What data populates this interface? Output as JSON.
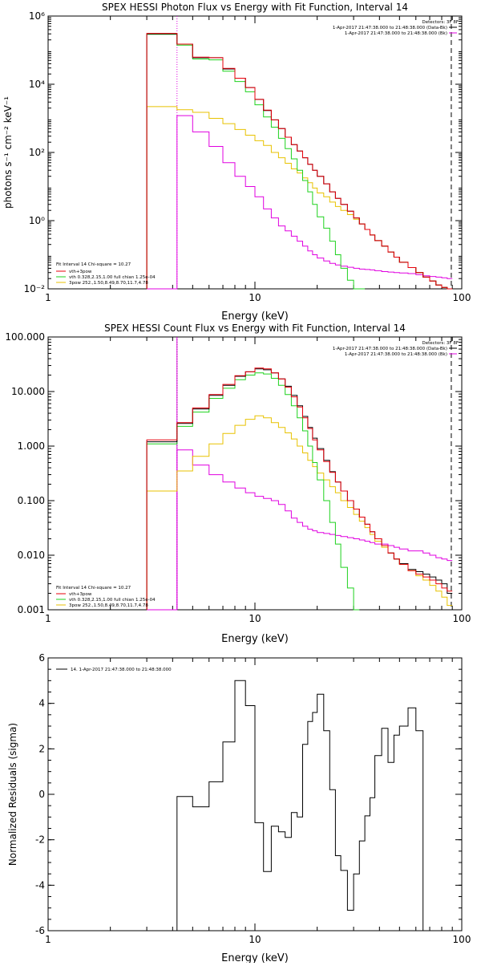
{
  "colors": {
    "data": "#000000",
    "total": "#e8000b",
    "thermal": "#1ed21e",
    "nonthermal": "#e8c200",
    "background": "#e000e0"
  },
  "chart_data": [
    {
      "type": "line",
      "title": "SPEX HESSI Photon Flux vs Energy with Fit Function, Interval 14",
      "xlabel": "Energy (keV)",
      "ylabel": "photons s⁻¹ cm⁻² keV⁻¹",
      "xscale": "log",
      "yscale": "log",
      "xlim": [
        1,
        100
      ],
      "ylim": [
        0.01,
        1000000
      ],
      "xticks": [
        {
          "v": 1,
          "label": "1"
        },
        {
          "v": 10,
          "label": "10"
        },
        {
          "v": 100,
          "label": "100"
        }
      ],
      "yticks": [
        {
          "v": 0.01,
          "label": "10⁻²"
        },
        {
          "v": 1,
          "label": "10⁰"
        },
        {
          "v": 100,
          "label": "10²"
        },
        {
          "v": 10000,
          "label": "10⁴"
        },
        {
          "v": 1000000,
          "label": "10⁶"
        }
      ],
      "vlines": [
        {
          "x": 4.2,
          "style": "dotted",
          "color": "#e000e0"
        },
        {
          "x": 89,
          "style": "dashed",
          "color": "#000000"
        }
      ],
      "legend_top": [
        "Detectors: 3F 8F",
        "1-Apr-2017 21:47:38.000 to 21:48:38.000 (Data-Bk)",
        "1-Apr-2017 21:47:38.000 to 21:48:38.000 (Bk)"
      ],
      "legend_bottom": [
        "Fit Interval 14   Chi-square = 10.27",
        "vth+3pow",
        "vth 0.328,2.15,1.00  full chian 1.25e-04",
        "3pow 252.,1.50,8.49,8.70,11.7,4.78"
      ],
      "edges": [
        3,
        4.2,
        5,
        6,
        7,
        8,
        9,
        10,
        11,
        12,
        13,
        14,
        15,
        16,
        17,
        18,
        19,
        20,
        21.5,
        23,
        24.5,
        26,
        28,
        30,
        32,
        34,
        36,
        38,
        41,
        44,
        47,
        50,
        55,
        60,
        65,
        70,
        75,
        80,
        85,
        90
      ],
      "series": [
        {
          "key": "data",
          "values": [
            300000,
            150000,
            60000,
            60000,
            28000,
            15000,
            8000,
            3600,
            1700,
            900,
            500,
            280,
            170,
            110,
            70,
            45,
            30,
            20,
            12,
            7,
            4.5,
            3,
            1.9,
            1.2,
            0.8,
            0.55,
            0.38,
            0.26,
            0.18,
            0.12,
            0.085,
            0.06,
            0.042,
            0.03,
            0.022,
            0.017,
            0.013,
            0.011,
            0.009
          ]
        },
        {
          "key": "total",
          "values": [
            310000,
            150000,
            62000,
            60000,
            29000,
            15000,
            8000,
            3600,
            1750,
            900,
            500,
            280,
            170,
            110,
            70,
            45,
            30,
            20,
            12,
            7,
            4.5,
            3,
            1.9,
            1.2,
            0.8,
            0.55,
            0.38,
            0.26,
            0.18,
            0.12,
            0.085,
            0.06,
            0.042,
            0.03,
            0.022,
            0.017,
            0.013,
            0.011,
            0.009
          ]
        },
        {
          "key": "thermal",
          "values": [
            290000,
            140000,
            55000,
            52000,
            24000,
            12000,
            6000,
            2500,
            1100,
            550,
            260,
            130,
            65,
            30,
            15,
            7,
            3,
            1.3,
            0.6,
            0.25,
            0.1,
            0.04,
            0.018,
            0.008,
            0.0035
          ]
        },
        {
          "key": "nonthermal",
          "values": [
            2200,
            1800,
            1500,
            1000,
            700,
            470,
            320,
            220,
            160,
            100,
            70,
            48,
            33,
            25,
            18,
            13,
            9,
            6.5,
            5,
            3.5,
            2.6,
            2,
            1.5,
            1.1,
            0.8,
            0.55,
            0.38,
            0.26,
            0.18,
            0.12,
            0.085,
            0.06,
            0.042,
            0.03,
            0.022,
            0.017,
            0.013,
            0.011,
            0.009
          ]
        },
        {
          "key": "background",
          "values": [
            0.01,
            1200,
            400,
            150,
            50,
            20,
            10,
            5,
            2.2,
            1.2,
            0.7,
            0.5,
            0.35,
            0.25,
            0.18,
            0.13,
            0.1,
            0.08,
            0.066,
            0.056,
            0.05,
            0.046,
            0.043,
            0.04,
            0.038,
            0.037,
            0.036,
            0.034,
            0.032,
            0.031,
            0.03,
            0.029,
            0.028,
            0.026,
            0.024,
            0.023,
            0.022,
            0.021,
            0.02
          ]
        }
      ]
    },
    {
      "type": "line",
      "title": "SPEX HESSI Count Flux vs Energy with Fit Function, Interval 14",
      "xlabel": "Energy (keV)",
      "ylabel": "",
      "xscale": "log",
      "yscale": "log",
      "xlim": [
        1,
        100
      ],
      "ylim": [
        0.001,
        100
      ],
      "xticks": [
        {
          "v": 1,
          "label": "1"
        },
        {
          "v": 10,
          "label": "10"
        },
        {
          "v": 100,
          "label": "100"
        }
      ],
      "yticks": [
        {
          "v": 0.001,
          "label": "0.001"
        },
        {
          "v": 0.01,
          "label": "0.010"
        },
        {
          "v": 0.1,
          "label": "0.100"
        },
        {
          "v": 1,
          "label": "1.000"
        },
        {
          "v": 10,
          "label": "10.000"
        },
        {
          "v": 100,
          "label": "100.000"
        }
      ],
      "vlines": [
        {
          "x": 4.2,
          "style": "dotted",
          "color": "#000000"
        },
        {
          "x": 4.2,
          "style": "solid",
          "color": "#e000e0"
        },
        {
          "x": 89,
          "style": "dashed",
          "color": "#000000"
        }
      ],
      "legend_top": [
        "Detectors: 3F 8F",
        "1-Apr-2017 21:47:38.000 to 21:48:38.000 (Data-Bk)",
        "1-Apr-2017 21:47:38.000 to 21:48:38.000 (Bk)"
      ],
      "legend_bottom": [
        "Fit Interval 14   Chi-square = 10.27",
        "vth+3pow",
        "vth 0.328,2.15,1.00  full chian 1.25e-04",
        "3pow 252.,1.50,8.49,8.70,11.7,4.78"
      ],
      "edges": [
        3,
        4.2,
        5,
        6,
        7,
        8,
        9,
        10,
        11,
        12,
        13,
        14,
        15,
        16,
        17,
        18,
        19,
        20,
        21.5,
        23,
        24.5,
        26,
        28,
        30,
        32,
        34,
        36,
        38,
        41,
        44,
        47,
        50,
        55,
        60,
        65,
        70,
        75,
        80,
        85,
        90
      ],
      "series": [
        {
          "key": "data",
          "values": [
            1.2,
            2.6,
            4.8,
            8.5,
            13,
            19,
            23,
            26,
            25,
            22,
            17,
            12.5,
            8.5,
            5.5,
            3.5,
            2.2,
            1.4,
            0.9,
            0.55,
            0.34,
            0.22,
            0.15,
            0.1,
            0.07,
            0.05,
            0.037,
            0.027,
            0.02,
            0.015,
            0.011,
            0.0085,
            0.007,
            0.0055,
            0.005,
            0.0045,
            0.004,
            0.0035,
            0.003,
            0.002
          ]
        },
        {
          "key": "total",
          "values": [
            1.3,
            2.7,
            5,
            8.8,
            13.5,
            19.5,
            23,
            27,
            26,
            22,
            17,
            12,
            8,
            5.2,
            3.3,
            2.1,
            1.3,
            0.85,
            0.52,
            0.33,
            0.22,
            0.15,
            0.1,
            0.07,
            0.05,
            0.037,
            0.027,
            0.02,
            0.015,
            0.011,
            0.0085,
            0.0068,
            0.0052,
            0.0045,
            0.004,
            0.0035,
            0.003,
            0.0025,
            0.0022
          ]
        },
        {
          "key": "thermal",
          "values": [
            1.1,
            2.3,
            4.2,
            7.5,
            11.5,
            16.5,
            20,
            22,
            21,
            17.5,
            13,
            8.8,
            5.5,
            3.3,
            1.9,
            1,
            0.5,
            0.24,
            0.1,
            0.04,
            0.016,
            0.006,
            0.0025,
            0.001
          ]
        },
        {
          "key": "nonthermal",
          "values": [
            0.15,
            0.35,
            0.65,
            1.1,
            1.7,
            2.4,
            3.1,
            3.6,
            3.3,
            2.7,
            2.2,
            1.75,
            1.35,
            1.0,
            0.75,
            0.55,
            0.42,
            0.32,
            0.24,
            0.18,
            0.14,
            0.1,
            0.075,
            0.056,
            0.042,
            0.032,
            0.024,
            0.018,
            0.014,
            0.011,
            0.0085,
            0.0068,
            0.0052,
            0.0042,
            0.0035,
            0.0028,
            0.0022,
            0.0017,
            0.0012
          ]
        },
        {
          "key": "background",
          "values": [
            0.001,
            0.85,
            0.45,
            0.3,
            0.22,
            0.17,
            0.14,
            0.12,
            0.11,
            0.1,
            0.085,
            0.065,
            0.048,
            0.04,
            0.034,
            0.03,
            0.028,
            0.026,
            0.025,
            0.024,
            0.023,
            0.022,
            0.021,
            0.02,
            0.019,
            0.018,
            0.017,
            0.016,
            0.016,
            0.015,
            0.014,
            0.013,
            0.012,
            0.012,
            0.011,
            0.01,
            0.009,
            0.0085,
            0.008
          ]
        }
      ]
    },
    {
      "type": "line",
      "title": "",
      "xlabel": "Energy (keV)",
      "ylabel": "Normalized Residuals (sigma)",
      "xscale": "log",
      "yscale": "linear",
      "xlim": [
        1,
        100
      ],
      "ylim": [
        -6,
        6
      ],
      "xticks": [
        {
          "v": 1,
          "label": "1"
        },
        {
          "v": 10,
          "label": "10"
        },
        {
          "v": 100,
          "label": "100"
        }
      ],
      "yticks": [
        {
          "v": -6,
          "label": "-6"
        },
        {
          "v": -4,
          "label": "-4"
        },
        {
          "v": -2,
          "label": "-2"
        },
        {
          "v": 0,
          "label": "0"
        },
        {
          "v": 2,
          "label": "2"
        },
        {
          "v": 4,
          "label": "4"
        },
        {
          "v": 6,
          "label": "6"
        }
      ],
      "legend": "14.  1-Apr-2017 21:47:38.000 to 21:48:38.000",
      "edges": [
        4.2,
        5,
        6,
        7,
        8,
        9,
        10,
        11,
        12,
        13,
        14,
        15,
        16,
        17,
        18,
        19,
        20,
        21.5,
        23,
        24.5,
        26,
        28,
        30,
        32,
        34,
        36,
        38,
        41,
        44,
        47,
        50,
        55,
        60,
        65,
        70,
        75,
        80,
        85,
        90
      ],
      "series": [
        {
          "key": "data",
          "values": [
            -0.1,
            -0.55,
            0.55,
            2.3,
            5.0,
            3.9,
            -1.25,
            -3.4,
            -1.4,
            -1.65,
            -1.9,
            -0.8,
            -1.0,
            2.2,
            3.2,
            3.6,
            4.4,
            2.8,
            0.2,
            -2.7,
            -3.35,
            -5.1,
            -3.5,
            -2.05,
            -0.95,
            -0.15,
            1.7,
            2.9,
            1.4,
            2.6,
            3.0,
            3.8,
            2.8
          ]
        }
      ]
    }
  ]
}
